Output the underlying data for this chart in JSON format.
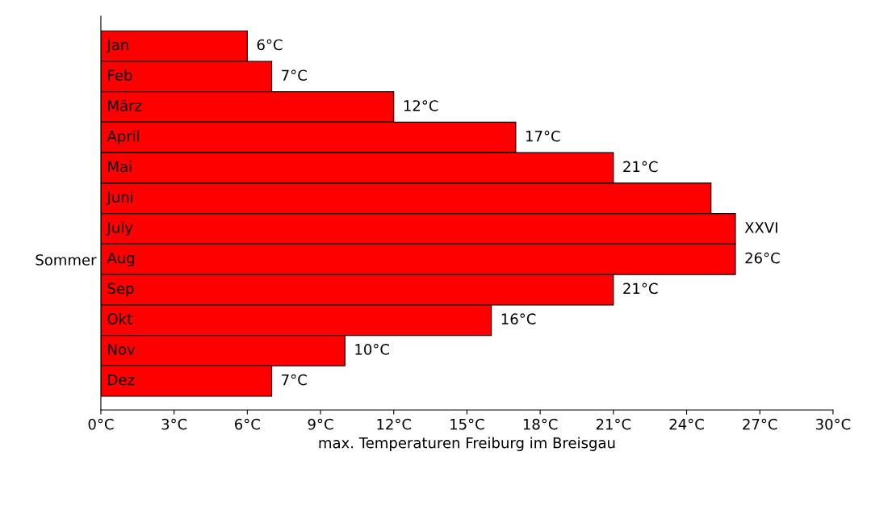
{
  "chart_data": {
    "type": "bar",
    "orientation": "horizontal",
    "categories": [
      "Jan",
      "Feb",
      "März",
      "April",
      "Mai",
      "Juni",
      "July",
      "Aug",
      "Sep",
      "Okt",
      "Nov",
      "Dez"
    ],
    "values": [
      6,
      7,
      12,
      17,
      21,
      25,
      26,
      26,
      21,
      16,
      10,
      7
    ],
    "value_labels": [
      "6°C",
      "7°C",
      "12°C",
      "17°C",
      "21°C",
      null,
      "XXVI",
      "26°C",
      "21°C",
      "16°C",
      "10°C",
      "7°C"
    ],
    "color": "#ff0000",
    "xlabel": "max. Temperaturen Freiburg im Breisgau",
    "ylabel": "Sommer",
    "xlim": [
      0,
      30
    ],
    "xticks": [
      {
        "value": 0,
        "label": "0°C"
      },
      {
        "value": 3,
        "label": "3°C"
      },
      {
        "value": 6,
        "label": "6°C"
      },
      {
        "value": 9,
        "label": "9°C"
      },
      {
        "value": 12,
        "label": "12°C"
      },
      {
        "value": 15,
        "label": "15°C"
      },
      {
        "value": 18,
        "label": "18°C"
      },
      {
        "value": 21,
        "label": "21°C"
      },
      {
        "value": 24,
        "label": "24°C"
      },
      {
        "value": 27,
        "label": "27°C"
      },
      {
        "value": 30,
        "label": "30°C"
      }
    ],
    "grid": false,
    "legend": false
  }
}
